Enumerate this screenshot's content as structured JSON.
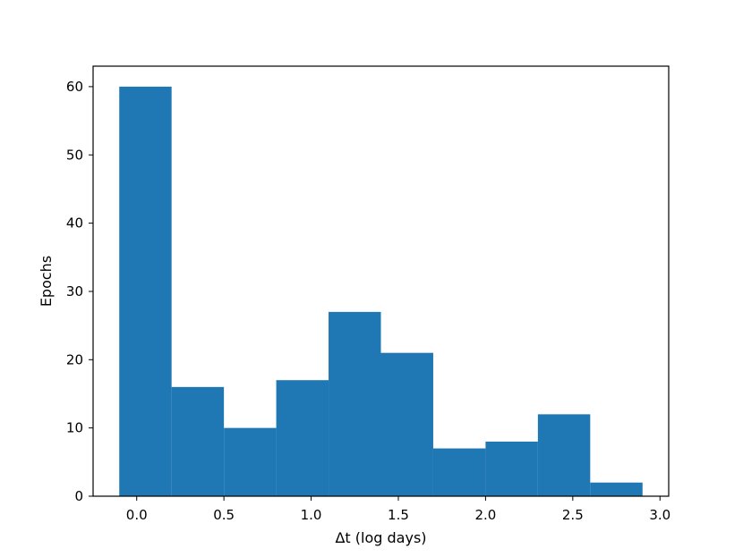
{
  "chart_data": {
    "type": "bar",
    "bins": [
      {
        "x0": -0.1,
        "x1": 0.2,
        "value": 60
      },
      {
        "x0": 0.2,
        "x1": 0.5,
        "value": 16
      },
      {
        "x0": 0.5,
        "x1": 0.8,
        "value": 10
      },
      {
        "x0": 0.8,
        "x1": 1.1,
        "value": 17
      },
      {
        "x0": 1.1,
        "x1": 1.4,
        "value": 27
      },
      {
        "x0": 1.4,
        "x1": 1.7,
        "value": 21
      },
      {
        "x0": 1.7,
        "x1": 2.0,
        "value": 7
      },
      {
        "x0": 2.0,
        "x1": 2.3,
        "value": 8
      },
      {
        "x0": 2.3,
        "x1": 2.6,
        "value": 12
      },
      {
        "x0": 2.6,
        "x1": 2.9,
        "value": 2
      }
    ],
    "xlabel": "Δt (log days)",
    "ylabel": "Epochs",
    "xlim": [
      -0.25,
      3.05
    ],
    "ylim": [
      0,
      63
    ],
    "xticks": [
      0.0,
      0.5,
      1.0,
      1.5,
      2.0,
      2.5,
      3.0
    ],
    "xtick_labels": [
      "0.0",
      "0.5",
      "1.0",
      "1.5",
      "2.0",
      "2.5",
      "3.0"
    ],
    "yticks": [
      0,
      10,
      20,
      30,
      40,
      50,
      60
    ],
    "ytick_labels": [
      "0",
      "10",
      "20",
      "30",
      "40",
      "50",
      "60"
    ],
    "bar_color": "#1f77b4",
    "grid": false
  }
}
